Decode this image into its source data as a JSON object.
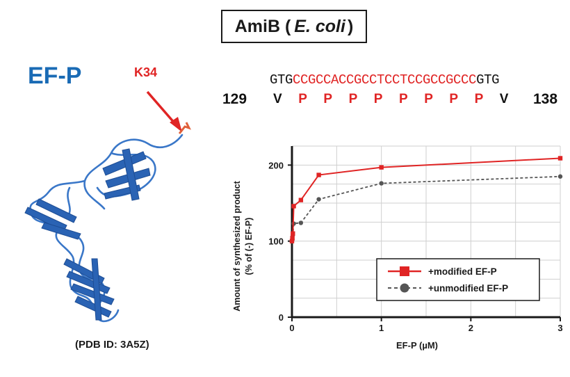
{
  "header": {
    "title_prefix": "AmiB (",
    "title_species": "E. coli",
    "title_suffix": ")"
  },
  "protein": {
    "label": "EF-P",
    "site_label": "K34",
    "pdb_caption": "(PDB ID: 3A5Z)"
  },
  "sequence": {
    "dna_prefix": "GTG",
    "dna_poly": "CCGCCACCGCCTCCTCCGCCGCCC",
    "dna_suffix": "GTG",
    "start_num": "129",
    "end_num": "138",
    "amino_acids": [
      "V",
      "P",
      "P",
      "P",
      "P",
      "P",
      "P",
      "P",
      "P",
      "V"
    ]
  },
  "colors": {
    "red": "#e02424",
    "blue": "#1a6bb5",
    "gray": "#555555",
    "dark": "#1a1a1a"
  },
  "chart_data": {
    "type": "line",
    "title": "",
    "xlabel": "EF-P (µM)",
    "ylabel_line1": "Amount of synthesized product",
    "ylabel_line2": "(% of (-) EF-P)",
    "xlim": [
      0,
      3
    ],
    "ylim": [
      0,
      225
    ],
    "x_ticks": [
      0,
      1,
      2,
      3
    ],
    "y_ticks": [
      0,
      100,
      200
    ],
    "grid": true,
    "legend_position": "lower-right",
    "series": [
      {
        "name": "+modified EF-P",
        "marker": "square",
        "line": "solid",
        "color": "#e02424",
        "x": [
          0,
          0.005,
          0.01,
          0.02,
          0.1,
          0.3,
          1,
          3
        ],
        "y": [
          100,
          104,
          110,
          146,
          154,
          187,
          197,
          209
        ]
      },
      {
        "name": "+unmodified EF-P",
        "marker": "circle",
        "line": "dashed",
        "color": "#555555",
        "x": [
          0,
          0.005,
          0.01,
          0.02,
          0.1,
          0.3,
          1,
          3
        ],
        "y": [
          100,
          102,
          108,
          123,
          124,
          155,
          176,
          185
        ]
      }
    ]
  }
}
